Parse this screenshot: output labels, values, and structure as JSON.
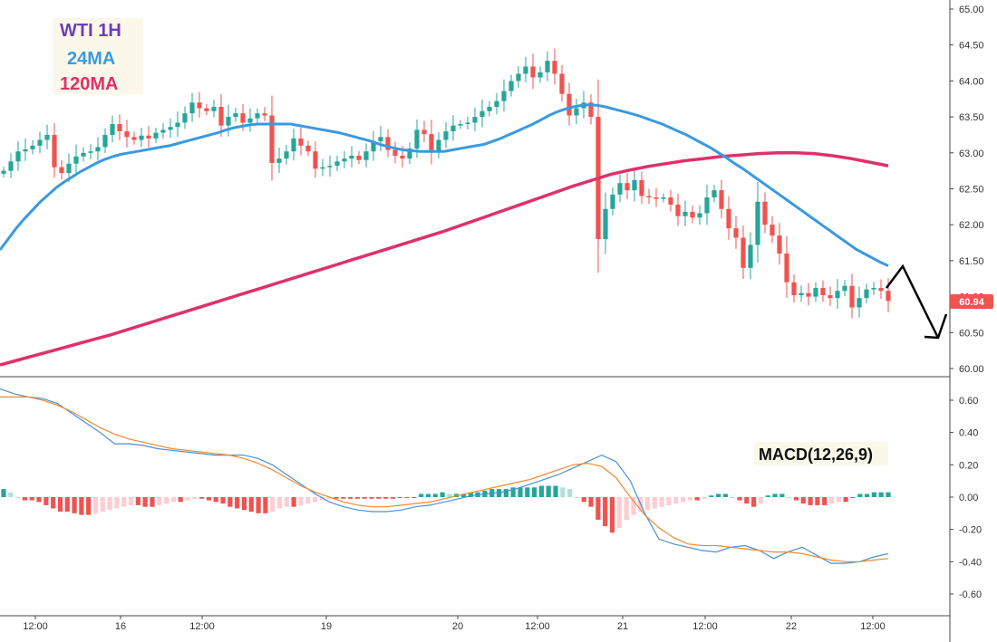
{
  "legend": {
    "title": "WTI 1H",
    "ma_short": "24MA",
    "ma_long": "120MA"
  },
  "colors": {
    "title": "#6a3fb5",
    "ma_short": "#3a9ae0",
    "ma_long": "#e0306a",
    "up": "#26a69a",
    "down": "#ef5350",
    "macd_line": "#4a90d9",
    "signal_line": "#f08a30",
    "hist_up_strong": "#26a69a",
    "hist_up_weak": "#b2dfdb",
    "hist_down_strong": "#ef5350",
    "hist_down_weak": "#ffcdd2",
    "price_tag": "#ef5350"
  },
  "chart_data": [
    {
      "type": "candlestick",
      "title": "WTI 1H",
      "ylim": [
        60.0,
        65.0
      ],
      "y_ticks": [
        "65.00",
        "64.50",
        "64.00",
        "63.50",
        "63.00",
        "62.50",
        "62.00",
        "61.50",
        "61.00",
        "60.50",
        "60.00"
      ],
      "x_ticks": [
        "12:00",
        "16",
        "12:00",
        "19",
        "20",
        "12:00",
        "21",
        "12:00",
        "22",
        "12:00"
      ],
      "last_price": "60.94",
      "close": [
        62.75,
        62.88,
        63.02,
        63.05,
        63.1,
        63.18,
        63.25,
        62.8,
        62.72,
        62.85,
        62.95,
        63.0,
        63.02,
        63.08,
        63.25,
        63.4,
        63.3,
        63.22,
        63.18,
        63.24,
        63.2,
        63.28,
        63.32,
        63.36,
        63.42,
        63.55,
        63.7,
        63.62,
        63.58,
        63.64,
        63.38,
        63.5,
        63.55,
        63.42,
        63.48,
        63.55,
        63.52,
        62.86,
        62.92,
        63.02,
        63.2,
        63.1,
        63.02,
        62.78,
        62.8,
        62.82,
        62.88,
        62.92,
        62.96,
        62.9,
        63.02,
        63.16,
        63.22,
        63.04,
        62.96,
        62.92,
        63.06,
        63.32,
        63.26,
        63.02,
        63.18,
        63.3,
        63.38,
        63.4,
        63.42,
        63.5,
        63.58,
        63.64,
        63.72,
        63.86,
        64.0,
        64.1,
        64.2,
        64.05,
        64.12,
        64.28,
        64.1,
        63.82,
        63.52,
        63.62,
        63.7,
        63.5,
        61.8,
        62.22,
        62.42,
        62.58,
        62.48,
        62.62,
        62.4,
        62.38,
        62.36,
        62.38,
        62.28,
        62.12,
        62.18,
        62.1,
        62.16,
        62.38,
        62.48,
        62.22,
        61.95,
        61.82,
        61.4,
        61.72,
        62.32,
        62.0,
        61.85,
        61.6,
        61.2,
        61.02,
        61.05,
        61.0,
        61.12,
        61.02,
        60.98,
        61.08,
        61.15,
        60.85,
        60.98,
        61.1,
        61.12,
        61.08,
        60.94
      ]
    },
    {
      "type": "line",
      "name": "24MA",
      "values": [
        61.65,
        61.8,
        61.95,
        62.08,
        62.2,
        62.32,
        62.42,
        62.52,
        62.6,
        62.67,
        62.74,
        62.8,
        62.86,
        62.91,
        62.95,
        62.98,
        63.0,
        63.02,
        63.04,
        63.06,
        63.08,
        63.1,
        63.13,
        63.16,
        63.19,
        63.22,
        63.25,
        63.28,
        63.32,
        63.35,
        63.37,
        63.39,
        63.4,
        63.4,
        63.4,
        63.4,
        63.4,
        63.38,
        63.36,
        63.34,
        63.32,
        63.3,
        63.28,
        63.25,
        63.22,
        63.19,
        63.16,
        63.12,
        63.09,
        63.06,
        63.04,
        63.03,
        63.02,
        63.02,
        63.02,
        63.02,
        63.04,
        63.06,
        63.08,
        63.1,
        63.12,
        63.16,
        63.2,
        63.25,
        63.3,
        63.35,
        63.4,
        63.46,
        63.52,
        63.57,
        63.61,
        63.64,
        63.66,
        63.67,
        63.66,
        63.64,
        63.61,
        63.58,
        63.55,
        63.52,
        63.48,
        63.44,
        63.4,
        63.35,
        63.3,
        63.25,
        63.19,
        63.13,
        63.07,
        63.0,
        62.93,
        62.85,
        62.78,
        62.7,
        62.62,
        62.54,
        62.46,
        62.38,
        62.3,
        62.22,
        62.14,
        62.06,
        61.98,
        61.9,
        61.82,
        61.74,
        61.66,
        61.6,
        61.54,
        61.48,
        61.43
      ]
    },
    {
      "type": "line",
      "name": "120MA",
      "values": [
        60.05,
        60.12,
        60.19,
        60.26,
        60.33,
        60.4,
        60.47,
        60.55,
        60.63,
        60.71,
        60.79,
        60.87,
        60.95,
        61.03,
        61.11,
        61.19,
        61.27,
        61.35,
        61.43,
        61.51,
        61.59,
        61.67,
        61.75,
        61.83,
        61.91,
        62.0,
        62.09,
        62.18,
        62.27,
        62.36,
        62.45,
        62.54,
        62.62,
        62.7,
        62.76,
        62.81,
        62.85,
        62.89,
        62.92,
        62.95,
        62.97,
        62.99,
        63.0,
        63.0,
        62.99,
        62.96,
        62.92,
        62.87,
        62.82
      ]
    },
    {
      "type": "line",
      "title": "MACD(12,26,9)",
      "ylim": [
        -0.75,
        0.75
      ],
      "y_ticks": [
        "0.60",
        "0.40",
        "0.20",
        "0.00",
        "-0.20",
        "-0.40",
        "-0.60"
      ],
      "series": [
        {
          "name": "MACD",
          "values": [
            0.67,
            0.64,
            0.62,
            0.61,
            0.58,
            0.52,
            0.46,
            0.4,
            0.33,
            0.33,
            0.32,
            0.3,
            0.29,
            0.28,
            0.27,
            0.26,
            0.26,
            0.26,
            0.24,
            0.2,
            0.14,
            0.08,
            0.02,
            -0.03,
            -0.06,
            -0.08,
            -0.09,
            -0.09,
            -0.08,
            -0.06,
            -0.05,
            -0.03,
            -0.01,
            0.01,
            0.02,
            0.03,
            0.05,
            0.08,
            0.11,
            0.14,
            0.18,
            0.22,
            0.26,
            0.22,
            0.1,
            -0.1,
            -0.26,
            -0.29,
            -0.31,
            -0.33,
            -0.34,
            -0.31,
            -0.3,
            -0.33,
            -0.38,
            -0.34,
            -0.31,
            -0.36,
            -0.41,
            -0.41,
            -0.4,
            -0.37,
            -0.35
          ]
        },
        {
          "name": "Signal",
          "values": [
            0.62,
            0.62,
            0.62,
            0.6,
            0.57,
            0.53,
            0.48,
            0.43,
            0.39,
            0.36,
            0.34,
            0.32,
            0.3,
            0.29,
            0.28,
            0.27,
            0.26,
            0.24,
            0.21,
            0.17,
            0.12,
            0.07,
            0.03,
            0.0,
            -0.03,
            -0.05,
            -0.06,
            -0.06,
            -0.05,
            -0.04,
            -0.03,
            -0.01,
            0.01,
            0.03,
            0.05,
            0.07,
            0.09,
            0.11,
            0.14,
            0.17,
            0.2,
            0.21,
            0.19,
            0.12,
            0.0,
            -0.11,
            -0.19,
            -0.25,
            -0.29,
            -0.3,
            -0.3,
            -0.31,
            -0.32,
            -0.33,
            -0.34,
            -0.34,
            -0.35,
            -0.37,
            -0.39,
            -0.4,
            -0.4,
            -0.39,
            -0.38
          ]
        }
      ],
      "histogram": [
        0.05,
        0.03,
        0.0,
        -0.02,
        -0.02,
        -0.03,
        -0.05,
        -0.07,
        -0.09,
        -0.09,
        -0.1,
        -0.11,
        -0.11,
        -0.1,
        -0.09,
        -0.08,
        -0.07,
        -0.06,
        -0.05,
        -0.05,
        -0.06,
        -0.06,
        -0.05,
        -0.04,
        -0.03,
        -0.03,
        -0.02,
        -0.01,
        -0.01,
        -0.02,
        -0.03,
        -0.04,
        -0.06,
        -0.07,
        -0.08,
        -0.09,
        -0.1,
        -0.1,
        -0.09,
        -0.07,
        -0.06,
        -0.06,
        -0.05,
        -0.04,
        -0.03,
        -0.02,
        -0.01,
        -0.01,
        -0.01,
        -0.01,
        -0.01,
        -0.01,
        -0.01,
        -0.01,
        -0.01,
        -0.01,
        0.0,
        0.0,
        0.0,
        0.02,
        0.02,
        0.02,
        0.03,
        0.02,
        0.02,
        0.02,
        0.03,
        0.03,
        0.04,
        0.05,
        0.05,
        0.05,
        0.06,
        0.06,
        0.06,
        0.06,
        0.07,
        0.07,
        0.07,
        0.06,
        0.05,
        0.0,
        -0.03,
        -0.06,
        -0.14,
        -0.18,
        -0.22,
        -0.19,
        -0.14,
        -0.11,
        -0.09,
        -0.08,
        -0.07,
        -0.06,
        -0.05,
        -0.04,
        -0.03,
        -0.02,
        -0.02,
        -0.01,
        0.01,
        0.02,
        0.02,
        0.0,
        -0.02,
        -0.04,
        -0.06,
        -0.04,
        0.01,
        0.02,
        0.02,
        0.0,
        -0.02,
        -0.04,
        -0.05,
        -0.05,
        -0.05,
        -0.04,
        -0.03,
        -0.03,
        0.0,
        0.02,
        0.02,
        0.03,
        0.03,
        0.03
      ]
    }
  ]
}
